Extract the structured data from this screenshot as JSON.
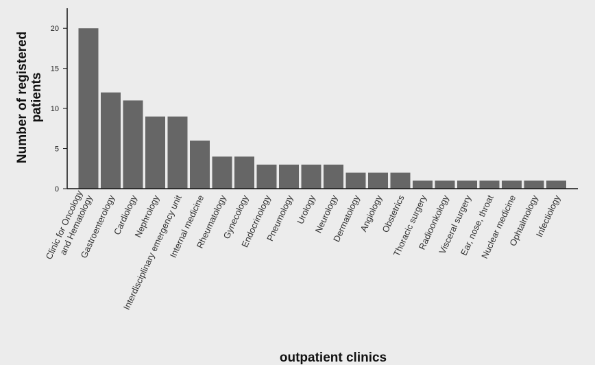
{
  "chart_data": {
    "type": "bar",
    "categories": [
      [
        "Clinic for Oncology",
        "and Hematology"
      ],
      [
        "Gastroenterology"
      ],
      [
        "Cardiology"
      ],
      [
        "Nephrology"
      ],
      [
        "Interdisciplinary emergency unit"
      ],
      [
        "Internal medicine"
      ],
      [
        "Rheumatology"
      ],
      [
        "Gynecology"
      ],
      [
        "Endocrinology"
      ],
      [
        "Pneumology"
      ],
      [
        "Urology"
      ],
      [
        "Neurology"
      ],
      [
        "Dermatology"
      ],
      [
        "Angiology"
      ],
      [
        "Obstetrics"
      ],
      [
        "Thoracic surgery"
      ],
      [
        "Radioonkology"
      ],
      [
        "Visceral surgery"
      ],
      [
        "Ear, nose, throat"
      ],
      [
        "Nuclear medicine"
      ],
      [
        "Ophtalmology"
      ],
      [
        "Infectiology"
      ]
    ],
    "values": [
      20,
      12,
      11,
      9,
      9,
      6,
      4,
      4,
      3,
      3,
      3,
      3,
      2,
      2,
      2,
      1,
      1,
      1,
      1,
      1,
      1,
      1
    ],
    "xlabel": "outpatient clinics",
    "ylabel": [
      "Number of registered",
      "patients"
    ],
    "yticks": [
      0,
      5,
      10,
      15,
      20
    ],
    "ylim": [
      0,
      22.5
    ],
    "grid": false,
    "bar_color": "#666666",
    "background_color": "#ececec"
  }
}
